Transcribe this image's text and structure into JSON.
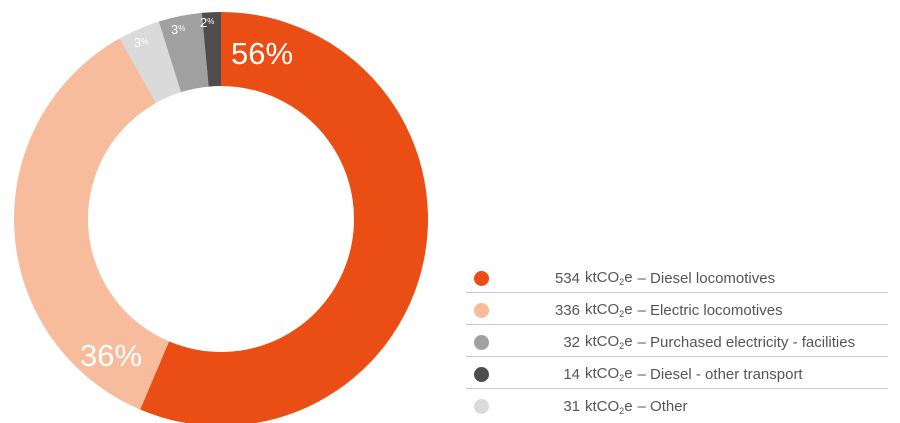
{
  "chart_data": {
    "type": "pie",
    "donut": true,
    "slices": [
      {
        "label": "534 ktCO2e – Diesel locomotives",
        "value": 534,
        "percent_label": "56%",
        "color": "#ea4e15"
      },
      {
        "label": "336 ktCO2e – Electric locomotives",
        "value": 336,
        "percent_label": "36%",
        "color": "#f6bc9c"
      },
      {
        "label": "31 ktCO2e – Other",
        "value": 31,
        "percent_label": "3",
        "percent_sign": "%",
        "color": "#dadada"
      },
      {
        "label": "32 ktCO2e – Purchased electricity - facilities",
        "value": 32,
        "percent_label": "3",
        "percent_sign": "%",
        "color": "#a0a0a0"
      },
      {
        "label": "14 ktCO2e – Diesel - other transport",
        "value": 14,
        "percent_label": "2",
        "percent_sign": "%",
        "color": "#4d4d4d"
      }
    ],
    "legend_position": "bottom-right"
  },
  "legend": {
    "unit_main": "ktCO",
    "unit_sub": "2",
    "unit_tail": "e",
    "items": [
      {
        "amount": "534",
        "desc": "– Diesel locomotives",
        "color": "#ea4e15"
      },
      {
        "amount": "336",
        "desc": "– Electric locomotives",
        "color": "#f6bc9c"
      },
      {
        "amount": "32",
        "desc": "– Purchased electricity - facilities",
        "color": "#a0a0a0"
      },
      {
        "amount": "14",
        "desc": "– Diesel - other transport",
        "color": "#4d4d4d"
      },
      {
        "amount": "31",
        "desc": "– Other",
        "color": "#dadada"
      }
    ]
  }
}
